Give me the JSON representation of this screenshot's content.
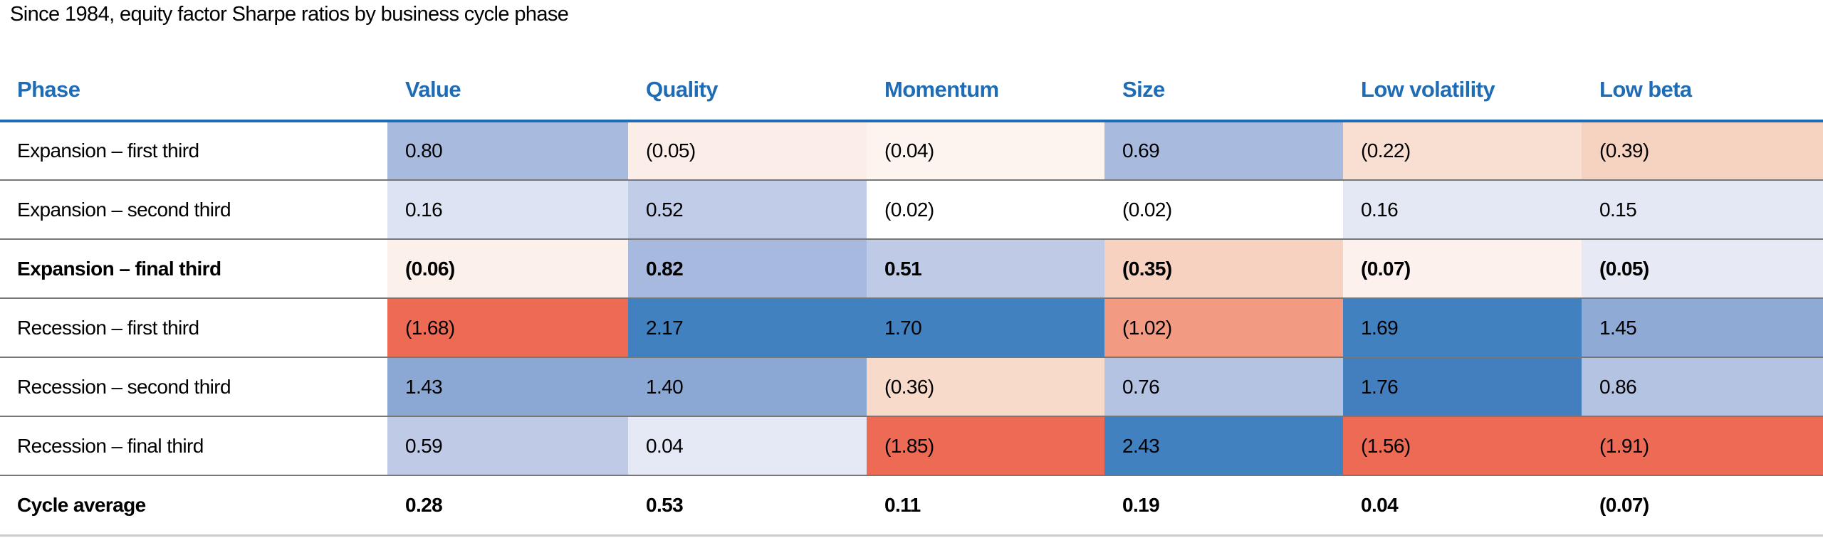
{
  "title": "Since 1984, equity factor Sharpe ratios by business cycle phase",
  "colors": {
    "header_text": "#1E6CB5",
    "header_rule": "#1E6CB5",
    "row_rule": "#777777",
    "bottom_rule": "#CCCCCC",
    "strong_blue": "#4181C0",
    "strong_red": "#ED6A55"
  },
  "table": {
    "columns": [
      "Phase",
      "Value",
      "Quality",
      "Momentum",
      "Size",
      "Low volatility",
      "Low beta"
    ],
    "rows": [
      {
        "label": "Expansion – first third",
        "bold": false,
        "last": false,
        "cells": [
          {
            "text": "0.80",
            "bg": "#A9BADF"
          },
          {
            "text": "(0.05)",
            "bg": "#FBEEE8"
          },
          {
            "text": "(0.04)",
            "bg": "#FDF3EF"
          },
          {
            "text": "0.69",
            "bg": "#A9BADF"
          },
          {
            "text": "(0.22)",
            "bg": "#F9DFD2"
          },
          {
            "text": "(0.39)",
            "bg": "#F6D2C1"
          }
        ]
      },
      {
        "label": "Expansion – second third",
        "bold": false,
        "last": false,
        "cells": [
          {
            "text": "0.16",
            "bg": "#DCE3F2"
          },
          {
            "text": "0.52",
            "bg": "#C0CCE8"
          },
          {
            "text": "(0.02)",
            "bg": "#FFFFFF"
          },
          {
            "text": "(0.02)",
            "bg": "#FFFFFF"
          },
          {
            "text": "0.16",
            "bg": "#E3E8F4"
          },
          {
            "text": "0.15",
            "bg": "#E3E8F4"
          }
        ]
      },
      {
        "label": "Expansion – final third",
        "bold": true,
        "last": false,
        "cells": [
          {
            "text": "(0.06)",
            "bg": "#FCF0EA"
          },
          {
            "text": "0.82",
            "bg": "#A7B9DE"
          },
          {
            "text": "0.51",
            "bg": "#BFCAE7"
          },
          {
            "text": "(0.35)",
            "bg": "#F7D2C0"
          },
          {
            "text": "(0.07)",
            "bg": "#FCF1EC"
          },
          {
            "text": "(0.05)",
            "bg": "#E7EAF5"
          }
        ]
      },
      {
        "label": "Recession – first third",
        "bold": false,
        "last": false,
        "cells": [
          {
            "text": "(1.68)",
            "bg": "#ED6A55"
          },
          {
            "text": "2.17",
            "bg": "#4181C0"
          },
          {
            "text": "1.70",
            "bg": "#4181C0"
          },
          {
            "text": "(1.02)",
            "bg": "#F29B82"
          },
          {
            "text": "1.69",
            "bg": "#4181C0"
          },
          {
            "text": "1.45",
            "bg": "#90AAD6"
          }
        ]
      },
      {
        "label": "Recession – second third",
        "bold": false,
        "last": false,
        "cells": [
          {
            "text": "1.43",
            "bg": "#8BA7D4"
          },
          {
            "text": "1.40",
            "bg": "#8BA7D4"
          },
          {
            "text": "(0.36)",
            "bg": "#F8DACB"
          },
          {
            "text": "0.76",
            "bg": "#B5C3E3"
          },
          {
            "text": "1.76",
            "bg": "#437FBE"
          },
          {
            "text": "0.86",
            "bg": "#B5C3E3"
          }
        ]
      },
      {
        "label": "Recession – final third",
        "bold": false,
        "last": false,
        "cells": [
          {
            "text": "0.59",
            "bg": "#BFCAE7"
          },
          {
            "text": "0.04",
            "bg": "#E4E9F5"
          },
          {
            "text": "(1.85)",
            "bg": "#ED6A55"
          },
          {
            "text": "2.43",
            "bg": "#4181C0"
          },
          {
            "text": "(1.56)",
            "bg": "#ED6A55"
          },
          {
            "text": "(1.91)",
            "bg": "#ED6A55"
          }
        ]
      },
      {
        "label": "Cycle average",
        "bold": true,
        "last": true,
        "cells": [
          {
            "text": "0.28",
            "bg": "#FFFFFF"
          },
          {
            "text": "0.53",
            "bg": "#FFFFFF"
          },
          {
            "text": "0.11",
            "bg": "#FFFFFF"
          },
          {
            "text": "0.19",
            "bg": "#FFFFFF"
          },
          {
            "text": "0.04",
            "bg": "#FFFFFF"
          },
          {
            "text": "(0.07)",
            "bg": "#FFFFFF"
          }
        ]
      }
    ]
  },
  "chart_data": {
    "type": "heatmap",
    "title": "Since 1984, equity factor Sharpe ratios by business cycle phase",
    "columns": [
      "Value",
      "Quality",
      "Momentum",
      "Size",
      "Low volatility",
      "Low beta"
    ],
    "row_labels": [
      "Expansion – first third",
      "Expansion – second third",
      "Expansion – final third",
      "Recession – first third",
      "Recession – second third",
      "Recession – final third",
      "Cycle average"
    ],
    "values": [
      [
        0.8,
        -0.05,
        -0.04,
        0.69,
        -0.22,
        -0.39
      ],
      [
        0.16,
        0.52,
        -0.02,
        -0.02,
        0.16,
        0.15
      ],
      [
        -0.06,
        0.82,
        0.51,
        -0.35,
        -0.07,
        -0.05
      ],
      [
        -1.68,
        2.17,
        1.7,
        -1.02,
        1.69,
        1.45
      ],
      [
        1.43,
        1.4,
        -0.36,
        0.76,
        1.76,
        0.86
      ],
      [
        0.59,
        0.04,
        -1.85,
        2.43,
        -1.56,
        -1.91
      ],
      [
        0.28,
        0.53,
        0.11,
        0.19,
        0.04,
        -0.07
      ]
    ]
  }
}
